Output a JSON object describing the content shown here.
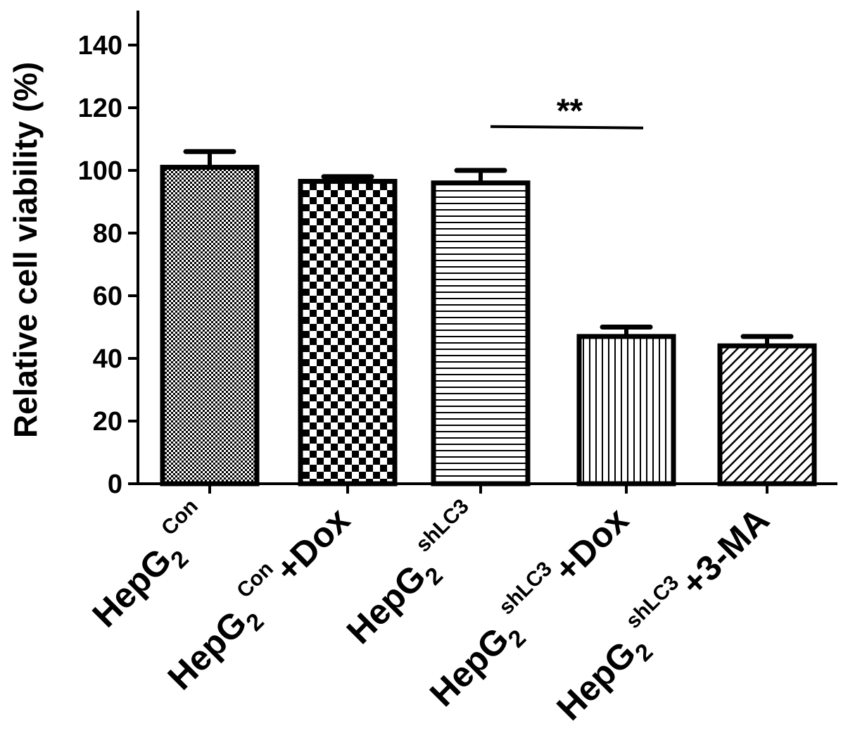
{
  "chart_data": {
    "type": "bar",
    "ylabel": "Relative cell viability (%)",
    "ylim": [
      0,
      150
    ],
    "yticks": [
      0,
      20,
      40,
      60,
      80,
      100,
      120,
      140
    ],
    "grid": false,
    "categories": [
      {
        "base": "HepG",
        "sub": "2",
        "sup": "Con",
        "suffix": ""
      },
      {
        "base": "HepG",
        "sub": "2",
        "sup": "Con",
        "suffix": "+Dox"
      },
      {
        "base": "HepG",
        "sub": "2",
        "sup": "shLC3",
        "suffix": ""
      },
      {
        "base": "HepG",
        "sub": "2",
        "sup": "shLC3",
        "suffix": "+Dox"
      },
      {
        "base": "HepG",
        "sub": "2",
        "sup": "shLC3",
        "suffix": "+3-MA"
      }
    ],
    "values": [
      101,
      96.5,
      96,
      47,
      44
    ],
    "errors": [
      5,
      1.5,
      4,
      3,
      3
    ],
    "patterns": [
      "dots",
      "checker",
      "hlines",
      "vlines",
      "diag"
    ],
    "significance": {
      "from": 2,
      "to": 3,
      "y": 114,
      "label": "**"
    }
  }
}
